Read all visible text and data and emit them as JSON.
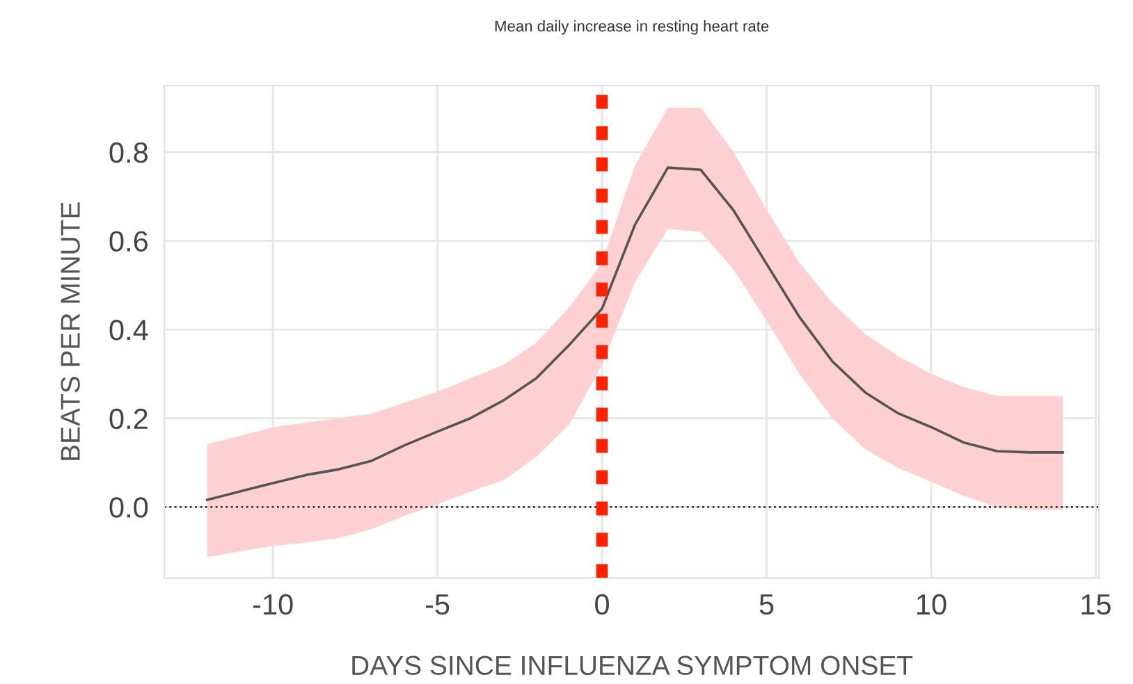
{
  "chart_data": {
    "type": "line",
    "title": "Mean daily increase in resting heart rate",
    "xlabel": "DAYS SINCE INFLUENZA SYMPTOM ONSET",
    "ylabel": "BEATS PER MINUTE",
    "x": [
      -12,
      -11,
      -10,
      -9,
      -8,
      -7,
      -6,
      -5,
      -4,
      -3,
      -2,
      -1,
      0,
      1,
      2,
      3,
      4,
      5,
      6,
      7,
      8,
      9,
      10,
      11,
      12,
      13,
      14
    ],
    "series": [
      {
        "color": "#555555",
        "values": [
          0.016,
          0.035,
          0.054,
          0.072,
          0.085,
          0.104,
          0.139,
          0.17,
          0.2,
          0.24,
          0.29,
          0.365,
          0.447,
          0.636,
          0.765,
          0.76,
          0.668,
          0.548,
          0.428,
          0.328,
          0.258,
          0.211,
          0.18,
          0.145,
          0.126,
          0.123,
          0.123
        ],
        "upper": [
          0.142,
          0.16,
          0.18,
          0.19,
          0.2,
          0.21,
          0.235,
          0.26,
          0.29,
          0.32,
          0.37,
          0.45,
          0.55,
          0.77,
          0.9,
          0.9,
          0.8,
          0.67,
          0.55,
          0.46,
          0.39,
          0.34,
          0.3,
          0.27,
          0.25,
          0.25,
          0.25
        ],
        "lower": [
          -0.113,
          -0.1,
          -0.088,
          -0.08,
          -0.07,
          -0.05,
          -0.02,
          0.006,
          0.035,
          0.06,
          0.113,
          0.186,
          0.32,
          0.507,
          0.627,
          0.62,
          0.535,
          0.42,
          0.3,
          0.2,
          0.13,
          0.088,
          0.057,
          0.025,
          0.0,
          -0.006,
          -0.006
        ]
      }
    ],
    "xlim": [
      -13.3,
      15.1
    ],
    "ylim": [
      -0.16,
      0.95
    ],
    "xticks": [
      -10,
      -5,
      0,
      5,
      10,
      15
    ],
    "yticks": [
      {
        "value": 0,
        "label": "0.0"
      },
      0.2,
      0.4,
      0.6,
      0.8
    ],
    "ref_lines": [
      {
        "axis": "x",
        "value": 0,
        "color": "#ff2200",
        "line_style": "dashed"
      },
      {
        "axis": "y",
        "value": 0,
        "color": "#333333",
        "line_style": "dotted"
      }
    ],
    "grid": true,
    "line_style": "solid",
    "marker": "none"
  }
}
